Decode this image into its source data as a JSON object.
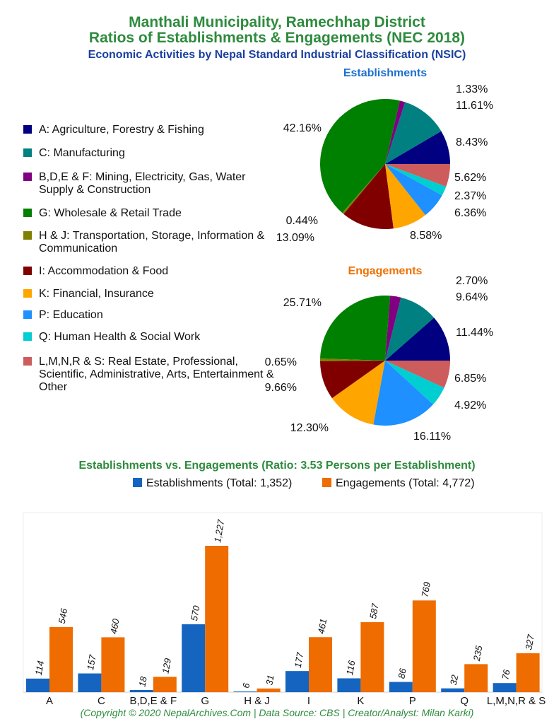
{
  "title_line1": "Manthali Municipality, Ramechhap District",
  "title_line2": "Ratios of Establishments & Engagements (NEC 2018)",
  "subtitle": "Economic Activities by Nepal Standard Industrial Classification (NSIC)",
  "legend": [
    {
      "label": "A: Agriculture, Forestry & Fishing",
      "color": "#000080"
    },
    {
      "label": "C: Manufacturing",
      "color": "#008080"
    },
    {
      "label": "B,D,E & F: Mining, Electricity, Gas, Water Supply & Construction",
      "color": "#800080"
    },
    {
      "label": "G: Wholesale & Retail Trade",
      "color": "#008000"
    },
    {
      "label": "H & J: Transportation, Storage, Information & Communication",
      "color": "#808000"
    },
    {
      "label": "I: Accommodation & Food",
      "color": "#800000"
    },
    {
      "label": "K: Financial, Insurance",
      "color": "#FFA500"
    },
    {
      "label": "P: Education",
      "color": "#1E90FF"
    },
    {
      "label": "Q: Human Health & Social Work",
      "color": "#00CED1"
    },
    {
      "label": "L,M,N,R & S: Real Estate, Professional, Scientific, Administrative, Arts, Entertainment & Other",
      "color": "#CD5C5C"
    }
  ],
  "chart_data": [
    {
      "type": "pie",
      "title": "Establishments",
      "title_color": "#1E6FD0",
      "start": "east, counterclockwise",
      "values": [
        8.43,
        11.61,
        1.33,
        42.16,
        0.44,
        13.09,
        8.58,
        6.36,
        2.37,
        5.62
      ],
      "labels": [
        "8.43%",
        "11.61%",
        "1.33%",
        "42.16%",
        "0.44%",
        "13.09%",
        "8.58%",
        "6.36%",
        "2.37%",
        "5.62%"
      ]
    },
    {
      "type": "pie",
      "title": "Engagements",
      "title_color": "#EE7000",
      "start": "east, counterclockwise",
      "values": [
        11.44,
        9.64,
        2.7,
        25.71,
        0.65,
        9.66,
        12.3,
        16.11,
        4.92,
        6.85
      ],
      "labels": [
        "11.44%",
        "9.64%",
        "2.70%",
        "25.71%",
        "0.65%",
        "9.66%",
        "12.30%",
        "16.11%",
        "4.92%",
        "6.85%"
      ]
    },
    {
      "type": "bar",
      "title": "Establishments vs. Engagements (Ratio: 3.53 Persons per Establishment)",
      "categories": [
        "A",
        "C",
        "B,D,E & F",
        "G",
        "H & J",
        "I",
        "K",
        "P",
        "Q",
        "L,M,N,R & S"
      ],
      "series": [
        {
          "name": "Establishments (Total: 1,352)",
          "color": "#1565C0",
          "values": [
            114,
            157,
            18,
            570,
            6,
            177,
            116,
            86,
            32,
            76
          ],
          "labels": [
            "114",
            "157",
            "18",
            "570",
            "6",
            "177",
            "116",
            "86",
            "32",
            "76"
          ]
        },
        {
          "name": "Engagements (Total: 4,772)",
          "color": "#EE6C00",
          "values": [
            546,
            460,
            129,
            1227,
            31,
            461,
            587,
            769,
            235,
            327
          ],
          "labels": [
            "546",
            "460",
            "129",
            "1,227",
            "31",
            "461",
            "587",
            "769",
            "235",
            "327"
          ]
        }
      ],
      "ylim": [
        0,
        1227
      ],
      "grid": false,
      "legend_placement": "top"
    }
  ],
  "copyright": "(Copyright © 2020 NepalArchives.Com | Data Source: CBS | Creator/Analyst: Milan Karki)"
}
